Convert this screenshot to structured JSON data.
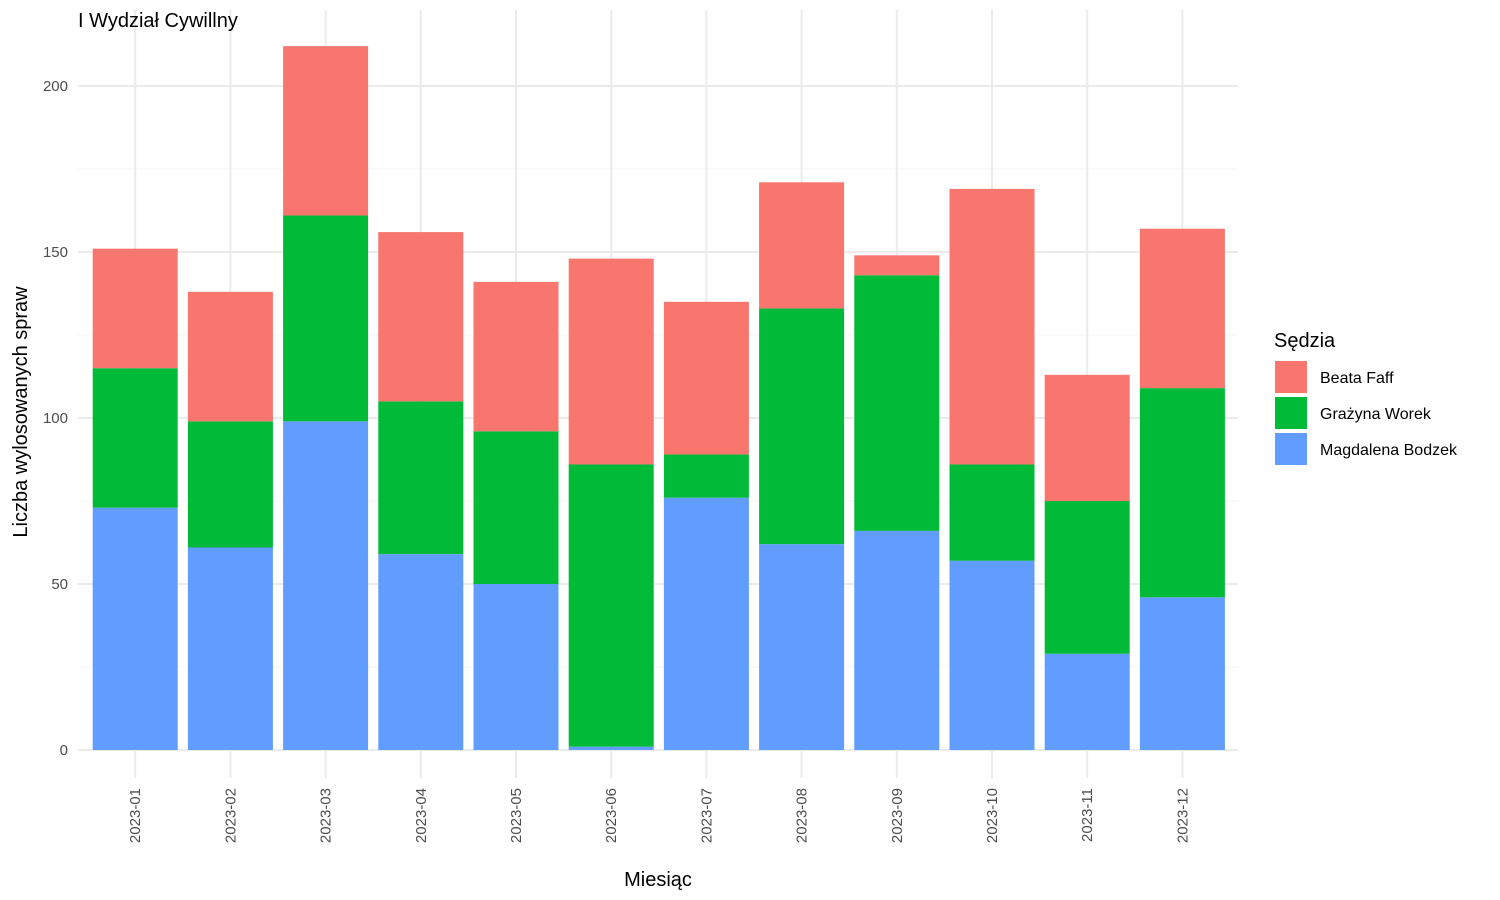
{
  "chart_data": {
    "type": "bar",
    "stacked": true,
    "title": "I Wydział Cywillny",
    "xlabel": "Miesiąc",
    "ylabel": "Liczba wylosowanych spraw",
    "categories": [
      "2023-01",
      "2023-02",
      "2023-03",
      "2023-04",
      "2023-05",
      "2023-06",
      "2023-07",
      "2023-08",
      "2023-09",
      "2023-10",
      "2023-11",
      "2023-12"
    ],
    "series": [
      {
        "name": "Magdalena Bodzek",
        "color": "#619CFF",
        "values": [
          73,
          61,
          99,
          59,
          50,
          1,
          76,
          62,
          66,
          57,
          29,
          46
        ]
      },
      {
        "name": "Grażyna Worek",
        "color": "#00BA38",
        "values": [
          42,
          38,
          62,
          46,
          46,
          85,
          13,
          71,
          77,
          29,
          46,
          63
        ]
      },
      {
        "name": "Beata Faff",
        "color": "#F8766D",
        "values": [
          36,
          39,
          51,
          51,
          45,
          62,
          46,
          38,
          6,
          83,
          38,
          48
        ]
      }
    ],
    "ylim": [
      0,
      220
    ],
    "yticks": [
      0,
      50,
      100,
      150,
      200
    ],
    "ytick_labels": [
      "0",
      "50",
      "100",
      "150",
      "200"
    ],
    "grid": true,
    "legend": {
      "title": "Sędzia",
      "placement": "right",
      "order": [
        "Beata Faff",
        "Grażyna Worek",
        "Magdalena Bodzek"
      ]
    }
  }
}
